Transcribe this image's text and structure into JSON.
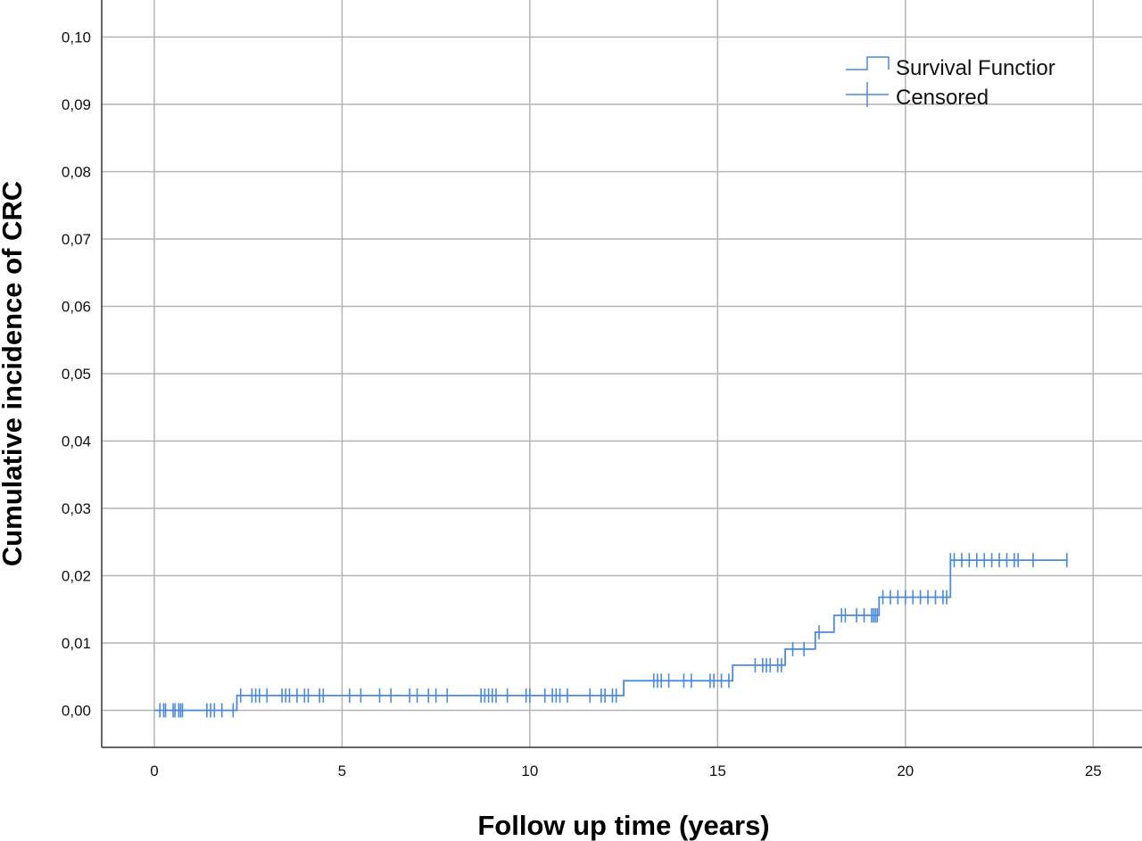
{
  "chart_data": {
    "type": "line",
    "xlabel": "Follow up time (years)",
    "ylabel": "Cumulative incidence of CRC",
    "xlim": [
      -1.4,
      26.3
    ],
    "ylim": [
      -0.0055,
      0.1055
    ],
    "x_ticks": [
      0,
      5,
      10,
      15,
      20,
      25
    ],
    "x_tick_labels": [
      "0",
      "5",
      "10",
      "15",
      "20",
      "25"
    ],
    "y_ticks": [
      0.0,
      0.01,
      0.02,
      0.03,
      0.04,
      0.05,
      0.06,
      0.07,
      0.08,
      0.09,
      0.1
    ],
    "y_tick_labels": [
      "0,00",
      "0,01",
      "0,02",
      "0,03",
      "0,04",
      "0,05",
      "0,06",
      "0,07",
      "0,08",
      "0,09",
      "0,10"
    ],
    "grid": true,
    "legend": {
      "position": "top-right",
      "entries": [
        {
          "label": "Survival Functior",
          "kind": "step"
        },
        {
          "label": "Censored",
          "kind": "censor"
        }
      ]
    },
    "series_color": "#4a8ad6",
    "series": [
      {
        "steps": [
          {
            "x": 0.0,
            "y": 0.0
          },
          {
            "x": 2.2,
            "y": 0.0022
          },
          {
            "x": 12.5,
            "y": 0.0044
          },
          {
            "x": 15.4,
            "y": 0.0067
          },
          {
            "x": 16.8,
            "y": 0.0091
          },
          {
            "x": 17.6,
            "y": 0.0116
          },
          {
            "x": 18.1,
            "y": 0.0141
          },
          {
            "x": 19.3,
            "y": 0.0168
          },
          {
            "x": 21.2,
            "y": 0.0223
          }
        ],
        "end_x": 24.3,
        "censored": [
          0.15,
          0.25,
          0.3,
          0.5,
          0.55,
          0.65,
          0.7,
          0.75,
          1.4,
          1.5,
          1.6,
          1.8,
          2.1,
          2.3,
          2.6,
          2.7,
          2.8,
          3.0,
          3.4,
          3.5,
          3.6,
          3.8,
          4.0,
          4.1,
          4.4,
          4.5,
          5.2,
          5.5,
          6.0,
          6.3,
          6.8,
          7.0,
          7.3,
          7.5,
          7.8,
          8.7,
          8.8,
          8.9,
          9.0,
          9.1,
          9.4,
          9.9,
          10.0,
          10.4,
          10.6,
          10.7,
          10.8,
          11.0,
          11.6,
          11.9,
          12.0,
          12.2,
          12.3,
          13.3,
          13.4,
          13.5,
          13.7,
          14.1,
          14.3,
          14.8,
          14.9,
          15.1,
          15.3,
          16.0,
          16.2,
          16.3,
          16.4,
          16.6,
          16.7,
          17.0,
          17.3,
          17.7,
          18.3,
          18.4,
          18.7,
          18.9,
          19.1,
          19.15,
          19.2,
          19.25,
          19.4,
          19.6,
          19.8,
          20.0,
          20.2,
          20.4,
          20.6,
          20.8,
          21.0,
          21.2,
          21.1,
          21.3,
          21.5,
          21.7,
          21.9,
          22.1,
          22.3,
          22.5,
          22.7,
          22.9,
          23.0,
          23.4,
          24.3
        ]
      }
    ]
  }
}
